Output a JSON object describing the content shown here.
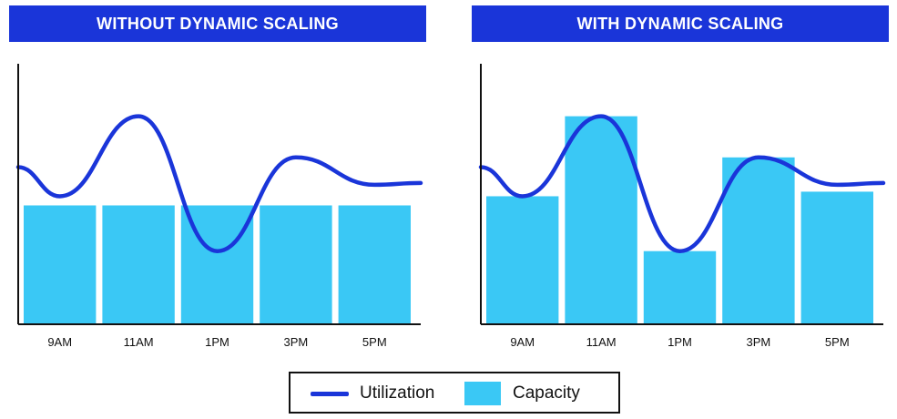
{
  "chart_data": [
    {
      "type": "bar",
      "title": "WITHOUT DYNAMIC SCALING",
      "categories": [
        "9AM",
        "11AM",
        "1PM",
        "3PM",
        "5PM"
      ],
      "series": [
        {
          "name": "Capacity",
          "type": "bar",
          "values": [
            50,
            50,
            50,
            50,
            50
          ]
        },
        {
          "name": "Utilization",
          "type": "line",
          "values": [
            54,
            89,
            30,
            71,
            59
          ]
        }
      ],
      "ylim": [
        0,
        100
      ],
      "xlabel": "",
      "ylabel": "",
      "legend": "bottom",
      "colors": {
        "bar": "#3ac8f5",
        "line": "#1a35d9",
        "header": "#1a35d9"
      }
    },
    {
      "type": "bar",
      "title": "WITH DYNAMIC SCALING",
      "categories": [
        "9AM",
        "11AM",
        "1PM",
        "3PM",
        "5PM"
      ],
      "series": [
        {
          "name": "Capacity",
          "type": "bar",
          "values": [
            54,
            89,
            30,
            71,
            56
          ]
        },
        {
          "name": "Utilization",
          "type": "line",
          "values": [
            54,
            89,
            30,
            71,
            59
          ]
        }
      ],
      "ylim": [
        0,
        100
      ],
      "xlabel": "",
      "ylabel": "",
      "legend": "bottom",
      "colors": {
        "bar": "#3ac8f5",
        "line": "#1a35d9",
        "header": "#1a35d9"
      }
    }
  ],
  "legend": {
    "items": [
      {
        "label": "Utilization",
        "icon": "line-swatch",
        "color": "#1a35d9"
      },
      {
        "label": "Capacity",
        "icon": "box-swatch",
        "color": "#3ac8f5"
      }
    ]
  }
}
